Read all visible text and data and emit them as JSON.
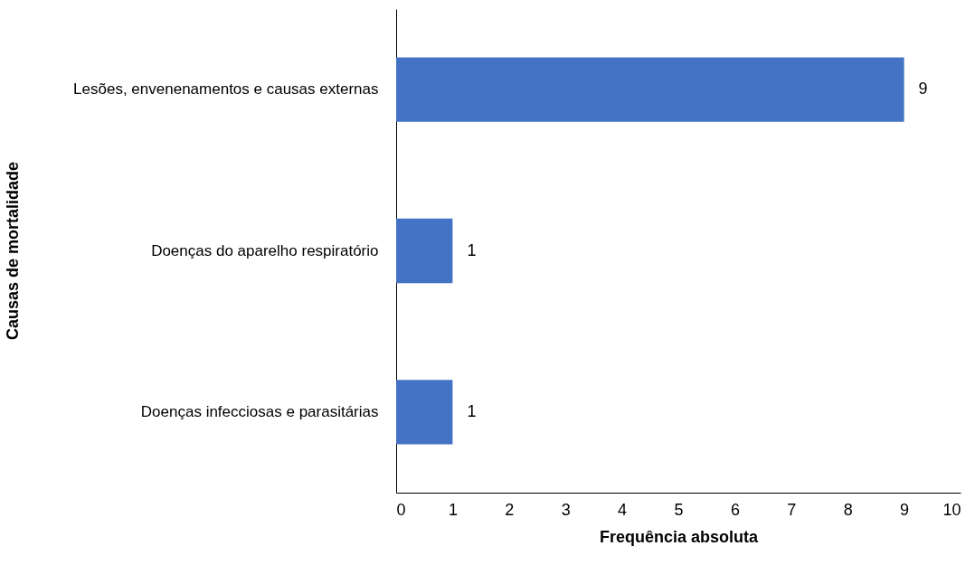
{
  "chart_data": {
    "type": "bar",
    "orientation": "horizontal",
    "xlabel": "Frequência absoluta",
    "ylabel": "Causas de mortalidade",
    "categories": [
      "Lesões, envenenamentos e causas externas",
      "Doenças do aparelho respiratório",
      "Doenças infecciosas e parasitárias"
    ],
    "values": [
      9,
      1,
      1
    ],
    "color": "#4472c4",
    "xlim": [
      0,
      10
    ],
    "xticks": [
      0,
      1,
      2,
      3,
      4,
      5,
      6,
      7,
      8,
      9,
      10
    ],
    "grid": false,
    "data_labels": true
  }
}
